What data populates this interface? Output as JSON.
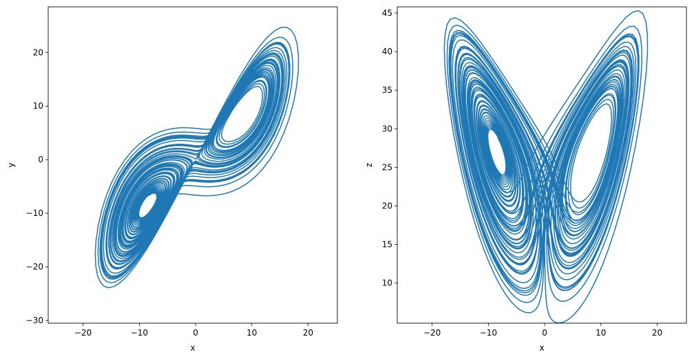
{
  "chart_data": [
    {
      "type": "line",
      "title": "",
      "xlabel": "x",
      "ylabel": "y",
      "xlim": [
        -26.2,
        25.2
      ],
      "ylim": [
        -30.5,
        28.5
      ],
      "xticks": [
        -20,
        -10,
        0,
        10,
        20
      ],
      "yticks": [
        -30,
        -20,
        -10,
        0,
        10,
        20
      ],
      "xtick_labels": [
        "−20",
        "−10",
        "0",
        "10",
        "20"
      ],
      "ytick_labels": [
        "−30",
        "−20",
        "−10",
        "0",
        "10",
        "20"
      ],
      "grid": false,
      "series": [
        {
          "color": "#1f77b4",
          "projection": [
            "x",
            "y"
          ]
        }
      ]
    },
    {
      "type": "line",
      "title": "",
      "xlabel": "x",
      "ylabel": "z",
      "xlim": [
        -26.2,
        25.2
      ],
      "ylim": [
        4.8,
        45.8
      ],
      "xticks": [
        -20,
        -10,
        0,
        10,
        20
      ],
      "yticks": [
        10,
        15,
        20,
        25,
        30,
        35,
        40,
        45
      ],
      "xtick_labels": [
        "−20",
        "−10",
        "0",
        "10",
        "20"
      ],
      "ytick_labels": [
        "10",
        "15",
        "20",
        "25",
        "30",
        "35",
        "40",
        "45"
      ],
      "grid": false,
      "series": [
        {
          "color": "#1f77b4",
          "projection": [
            "x",
            "z"
          ]
        }
      ]
    }
  ]
}
